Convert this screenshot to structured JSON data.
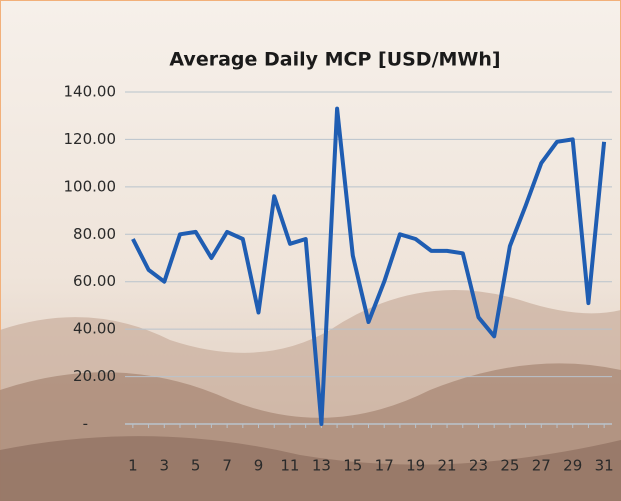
{
  "chart_data": {
    "type": "line",
    "title": "Average Daily MCP [USD/MWh]",
    "categories": [
      "1",
      null,
      "3",
      null,
      "5",
      null,
      "7",
      null,
      "9",
      null,
      "11",
      null,
      "13",
      null,
      "15",
      null,
      "17",
      null,
      "19",
      null,
      "21",
      null,
      "23",
      null,
      "25",
      null,
      "27",
      null,
      "29",
      null,
      "31"
    ],
    "values": [
      78,
      65,
      60,
      80,
      81,
      70,
      81,
      78,
      47,
      96,
      76,
      78,
      0,
      133,
      71,
      43,
      60,
      80,
      78,
      73,
      73,
      72,
      45,
      37,
      75,
      92,
      110,
      119,
      120,
      51,
      119
    ],
    "color": "#1f5db2",
    "ylim": [
      0,
      140
    ],
    "yticks": [
      {
        "value": 0,
        "label": "-"
      },
      {
        "value": 20,
        "label": "20.00"
      },
      {
        "value": 40,
        "label": "40.00"
      },
      {
        "value": 60,
        "label": "60.00"
      },
      {
        "value": 80,
        "label": "80.00"
      },
      {
        "value": 100,
        "label": "100.00"
      },
      {
        "value": 120,
        "label": "120.00"
      },
      {
        "value": 140,
        "label": "140.00"
      }
    ],
    "grid": true
  }
}
